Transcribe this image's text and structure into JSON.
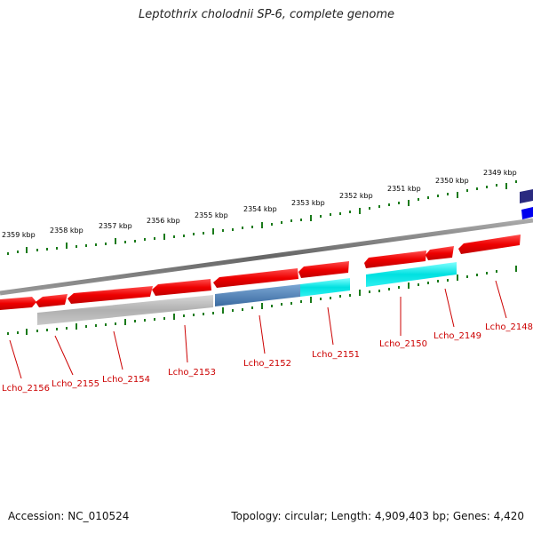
{
  "title": "Leptothrix cholodnii SP-6, complete genome",
  "footer": {
    "accession": "Accession: NC_010524",
    "topology": "Topology: circular; Length: 4,909,403 bp; Genes: 4,420"
  },
  "colors": {
    "forward_gene": "#ee0000",
    "reverse_gene": "#b0b0b0",
    "highlight_gene": "#00e0e0",
    "steelblue_gene": "#4a7ab0",
    "navy_gene": "#2a2a80",
    "blue_gene": "#0000ee",
    "backbone": "#888888",
    "tick": "#1a7a1a",
    "gene_label": "#cc0000"
  },
  "kbp_labels": [
    "2359 kbp",
    "2358 kbp",
    "2357 kbp",
    "2356 kbp",
    "2355 kbp",
    "2354 kbp",
    "2353 kbp",
    "2352 kbp",
    "2351 kbp",
    "2350 kbp",
    "2349 kbp"
  ],
  "gene_labels": [
    "Lcho_2156",
    "Lcho_2155",
    "Lcho_2154",
    "Lcho_2153",
    "Lcho_2152",
    "Lcho_2151",
    "Lcho_2150",
    "Lcho_2149",
    "Lcho_2148"
  ]
}
